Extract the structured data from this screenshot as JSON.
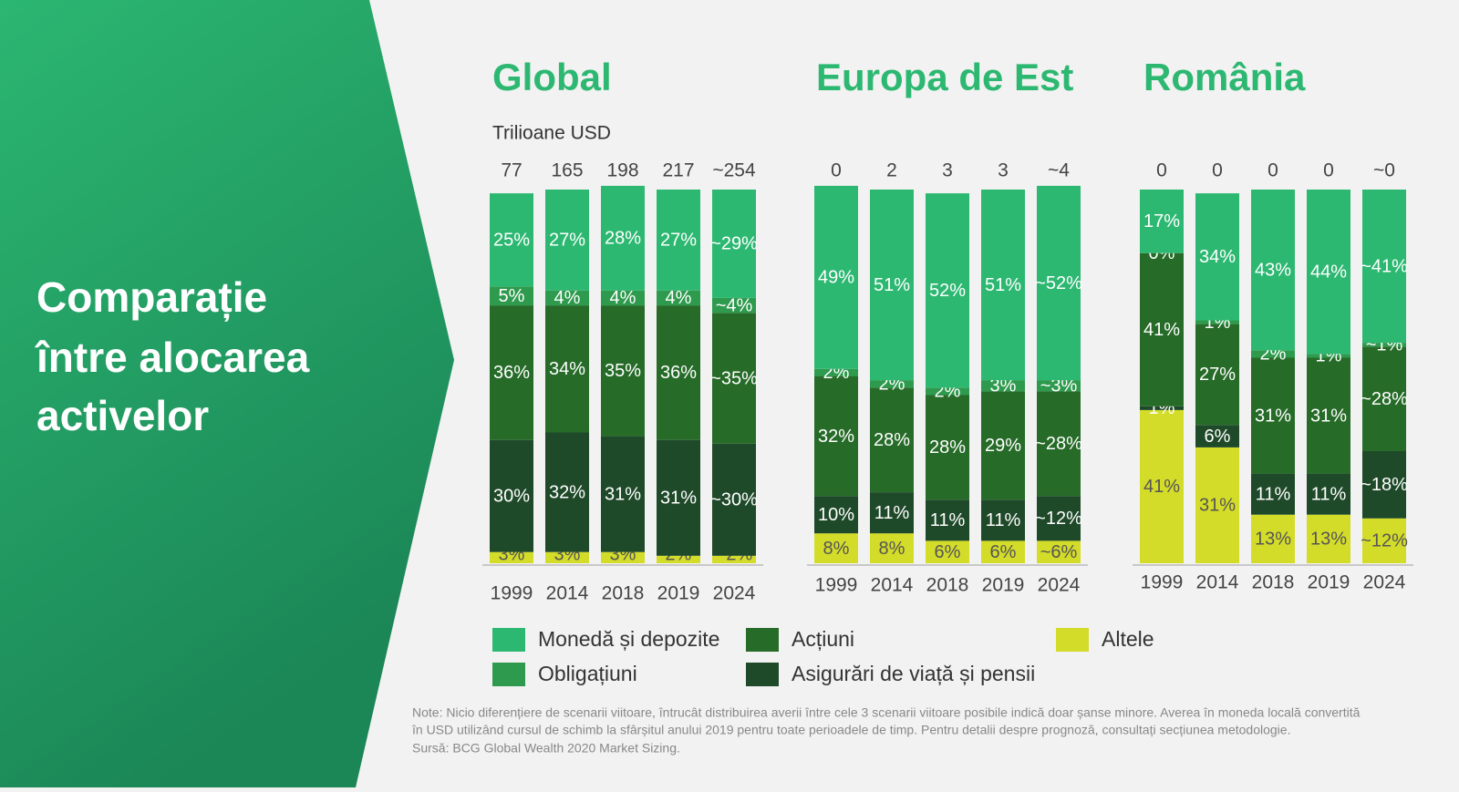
{
  "side_title": [
    "Comparație",
    "între alocarea",
    "activelor"
  ],
  "legend": [
    {
      "name": "Monedă și depozite",
      "color": "#2db872"
    },
    {
      "name": "Obligațiuni",
      "color": "#2e9a4d"
    },
    {
      "name": "Acțiuni",
      "color": "#266b28"
    },
    {
      "name": "Asigurări de viață și pensii",
      "color": "#1f4a2a"
    },
    {
      "name": "Altele",
      "color": "#d4dc2a"
    }
  ],
  "notes": [
    "Note: Nicio diferențiere de scenarii viitoare, întrucât distribuirea averii între cele 3 scenarii viitoare posibile indică doar șanse minore. Averea în moneda locală convertită",
    "în USD utilizând cursul de schimb la sfârșitul anului 2019 pentru toate perioadele de timp. Pentru detalii despre prognoză, consultați secțiunea metodologie.",
    "Sursă: BCG Global Wealth 2020 Market Sizing."
  ],
  "chart_data": [
    {
      "type": "bar",
      "title": "Global",
      "subtitle": "Trilioane USD",
      "categories": [
        "1999",
        "2014",
        "2018",
        "2019",
        "2024"
      ],
      "totals": [
        77,
        165,
        198,
        217,
        254
      ],
      "totals_labels": [
        "77",
        "165",
        "198",
        "217",
        "~254"
      ],
      "ylim": [
        0,
        100
      ],
      "series": [
        {
          "values": [
            25,
            27,
            28,
            27,
            29
          ],
          "value_labels": [
            "25%",
            "27%",
            "28%",
            "27%",
            "~29%"
          ]
        },
        {
          "values": [
            5,
            4,
            4,
            4,
            4
          ],
          "value_labels": [
            "5%",
            "4%",
            "4%",
            "4%",
            "~4%"
          ]
        },
        {
          "values": [
            36,
            34,
            35,
            36,
            35
          ],
          "value_labels": [
            "36%",
            "34%",
            "35%",
            "36%",
            "~35%"
          ]
        },
        {
          "values": [
            30,
            32,
            31,
            31,
            30
          ],
          "value_labels": [
            "30%",
            "32%",
            "31%",
            "31%",
            "~30%"
          ]
        },
        {
          "values": [
            3,
            3,
            3,
            2,
            2
          ],
          "value_labels": [
            "3%",
            "3%",
            "3%",
            "2%",
            "~2%"
          ]
        }
      ]
    },
    {
      "type": "bar",
      "title": "Europa de Est",
      "categories": [
        "1999",
        "2014",
        "2018",
        "2019",
        "2024"
      ],
      "totals": [
        0,
        2,
        3,
        3,
        4
      ],
      "totals_labels": [
        "0",
        "2",
        "3",
        "3",
        "~4"
      ],
      "ylim": [
        0,
        100
      ],
      "series": [
        {
          "values": [
            49,
            51,
            52,
            51,
            52
          ],
          "value_labels": [
            "49%",
            "51%",
            "52%",
            "51%",
            "~52%"
          ]
        },
        {
          "values": [
            2,
            2,
            2,
            3,
            3
          ],
          "value_labels": [
            "2%",
            "2%",
            "2%",
            "3%",
            "~3%"
          ]
        },
        {
          "values": [
            32,
            28,
            28,
            29,
            28
          ],
          "value_labels": [
            "32%",
            "28%",
            "28%",
            "29%",
            "~28%"
          ]
        },
        {
          "values": [
            10,
            11,
            11,
            11,
            12
          ],
          "value_labels": [
            "10%",
            "11%",
            "11%",
            "11%",
            "~12%"
          ]
        },
        {
          "values": [
            8,
            8,
            6,
            6,
            6
          ],
          "value_labels": [
            "8%",
            "8%",
            "6%",
            "6%",
            "~6%"
          ]
        }
      ]
    },
    {
      "type": "bar",
      "title": "România",
      "categories": [
        "1999",
        "2014",
        "2018",
        "2019",
        "2024"
      ],
      "totals": [
        0,
        0,
        0,
        0,
        0
      ],
      "totals_labels": [
        "0",
        "0",
        "0",
        "0",
        "~0"
      ],
      "ylim": [
        0,
        100
      ],
      "series": [
        {
          "values": [
            17,
            34,
            43,
            44,
            41
          ],
          "value_labels": [
            "17%",
            "34%",
            "43%",
            "44%",
            "~41%"
          ]
        },
        {
          "values": [
            0,
            1,
            2,
            1,
            1
          ],
          "value_labels": [
            "0%",
            "1%",
            "2%",
            "1%",
            "~1%"
          ]
        },
        {
          "values": [
            41,
            27,
            31,
            31,
            28
          ],
          "value_labels": [
            "41%",
            "27%",
            "31%",
            "31%",
            "~28%"
          ]
        },
        {
          "values": [
            1,
            6,
            11,
            11,
            18
          ],
          "value_labels": [
            "1%",
            "6%",
            "11%",
            "11%",
            "~18%"
          ]
        },
        {
          "values": [
            41,
            31,
            13,
            13,
            12
          ],
          "value_labels": [
            "41%",
            "31%",
            "13%",
            "13%",
            "~12%"
          ]
        }
      ]
    }
  ]
}
